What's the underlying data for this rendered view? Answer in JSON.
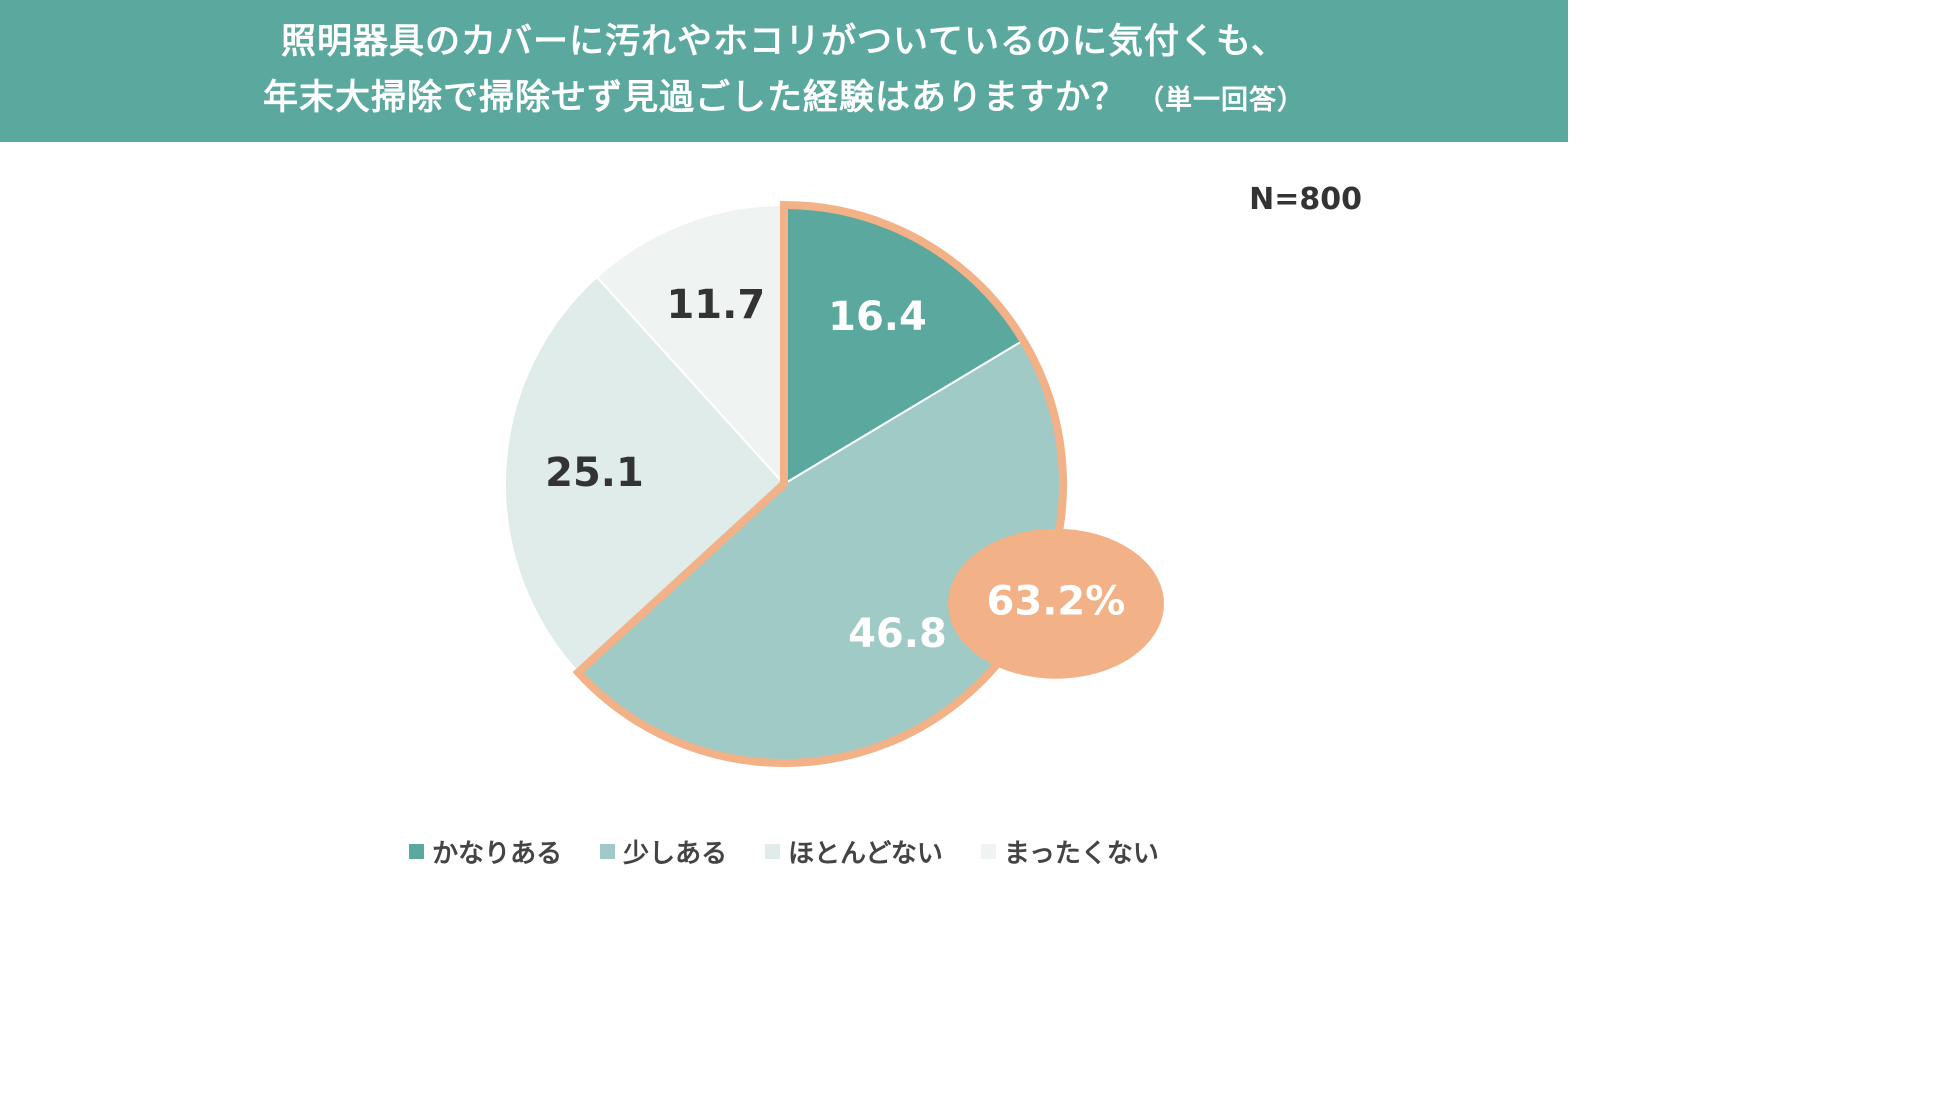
{
  "header": {
    "title_line1": "照明器具のカバーに汚れやホコリがついているのに気付くも、",
    "title_line2": "年末大掃除で掃除せず見過ごした経験はありますか？",
    "note": "（単一回答）"
  },
  "sample_size": "N=800",
  "chart_data": {
    "type": "pie",
    "title": "照明器具のカバーに汚れやホコリがついているのに気付くも、年末大掃除で掃除せず見過ごした経験はありますか？（単一回答）",
    "n": 800,
    "unit": "%",
    "start": "12 o'clock",
    "direction": "clockwise",
    "slices": [
      {
        "label": "かなりある",
        "value": 16.4,
        "color": "#5aa89e",
        "text_color": "#ffffff"
      },
      {
        "label": "少しある",
        "value": 46.8,
        "color": "#9fcac5",
        "text_color": "#ffffff"
      },
      {
        "label": "ほとんどない",
        "value": 25.1,
        "color": "#dfecea",
        "text_color": "#333333"
      },
      {
        "label": "まったくない",
        "value": 11.7,
        "color": "#eff3f2",
        "text_color": "#333333"
      }
    ],
    "highlight": {
      "slices": [
        "かなりある",
        "少しある"
      ],
      "total_label": "63.2%",
      "outline_color": "#f2b186",
      "badge_color": "#f2b186"
    },
    "legend": {
      "position": "bottom",
      "items": [
        "かなりある",
        "少しある",
        "ほとんどない",
        "まったくない"
      ]
    }
  }
}
